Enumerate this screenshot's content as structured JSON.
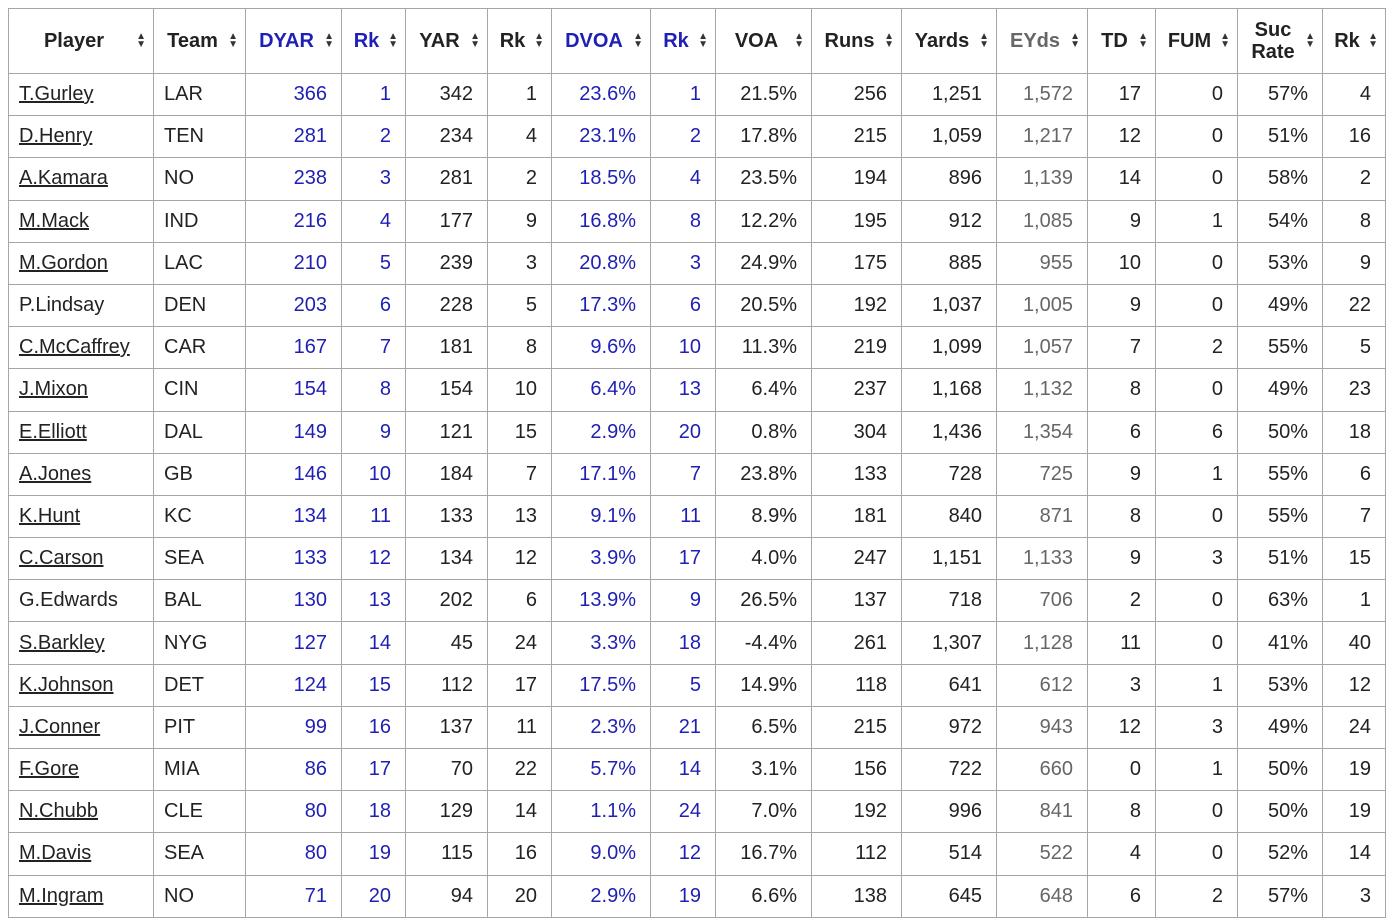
{
  "colors": {
    "highlight": "#1f1fb4",
    "muted": "#666666",
    "border": "#a6a6a6"
  },
  "sort_icon": "sort-updown-icon",
  "headers": [
    {
      "label": "Player",
      "style": "plain"
    },
    {
      "label": "Team",
      "style": "plain"
    },
    {
      "label": "DYAR",
      "style": "blue"
    },
    {
      "label": "Rk",
      "style": "blue"
    },
    {
      "label": "YAR",
      "style": "plain"
    },
    {
      "label": "Rk",
      "style": "plain"
    },
    {
      "label": "DVOA",
      "style": "blue"
    },
    {
      "label": "Rk",
      "style": "blue"
    },
    {
      "label": "VOA",
      "style": "plain"
    },
    {
      "label": "Runs",
      "style": "plain"
    },
    {
      "label": "Yards",
      "style": "plain"
    },
    {
      "label": "EYds",
      "style": "gray"
    },
    {
      "label": "TD",
      "style": "plain"
    },
    {
      "label": "FUM",
      "style": "plain"
    },
    {
      "label": "Suc Rate",
      "style": "plain"
    },
    {
      "label": "Rk",
      "style": "plain"
    }
  ],
  "rows": [
    {
      "player": "T.Gurley",
      "linked": true,
      "cells": [
        "LAR",
        "366",
        "1",
        "342",
        "1",
        "23.6%",
        "1",
        "21.5%",
        "256",
        "1,251",
        "1,572",
        "17",
        "0",
        "57%",
        "4"
      ]
    },
    {
      "player": "D.Henry",
      "linked": true,
      "cells": [
        "TEN",
        "281",
        "2",
        "234",
        "4",
        "23.1%",
        "2",
        "17.8%",
        "215",
        "1,059",
        "1,217",
        "12",
        "0",
        "51%",
        "16"
      ]
    },
    {
      "player": "A.Kamara",
      "linked": true,
      "cells": [
        "NO",
        "238",
        "3",
        "281",
        "2",
        "18.5%",
        "4",
        "23.5%",
        "194",
        "896",
        "1,139",
        "14",
        "0",
        "58%",
        "2"
      ]
    },
    {
      "player": "M.Mack",
      "linked": true,
      "cells": [
        "IND",
        "216",
        "4",
        "177",
        "9",
        "16.8%",
        "8",
        "12.2%",
        "195",
        "912",
        "1,085",
        "9",
        "1",
        "54%",
        "8"
      ]
    },
    {
      "player": "M.Gordon",
      "linked": true,
      "cells": [
        "LAC",
        "210",
        "5",
        "239",
        "3",
        "20.8%",
        "3",
        "24.9%",
        "175",
        "885",
        "955",
        "10",
        "0",
        "53%",
        "9"
      ]
    },
    {
      "player": "P.Lindsay",
      "linked": false,
      "cells": [
        "DEN",
        "203",
        "6",
        "228",
        "5",
        "17.3%",
        "6",
        "20.5%",
        "192",
        "1,037",
        "1,005",
        "9",
        "0",
        "49%",
        "22"
      ]
    },
    {
      "player": "C.McCaffrey",
      "linked": true,
      "cells": [
        "CAR",
        "167",
        "7",
        "181",
        "8",
        "9.6%",
        "10",
        "11.3%",
        "219",
        "1,099",
        "1,057",
        "7",
        "2",
        "55%",
        "5"
      ]
    },
    {
      "player": "J.Mixon",
      "linked": true,
      "cells": [
        "CIN",
        "154",
        "8",
        "154",
        "10",
        "6.4%",
        "13",
        "6.4%",
        "237",
        "1,168",
        "1,132",
        "8",
        "0",
        "49%",
        "23"
      ]
    },
    {
      "player": "E.Elliott",
      "linked": true,
      "cells": [
        "DAL",
        "149",
        "9",
        "121",
        "15",
        "2.9%",
        "20",
        "0.8%",
        "304",
        "1,436",
        "1,354",
        "6",
        "6",
        "50%",
        "18"
      ]
    },
    {
      "player": "A.Jones",
      "linked": true,
      "cells": [
        "GB",
        "146",
        "10",
        "184",
        "7",
        "17.1%",
        "7",
        "23.8%",
        "133",
        "728",
        "725",
        "9",
        "1",
        "55%",
        "6"
      ]
    },
    {
      "player": "K.Hunt",
      "linked": true,
      "cells": [
        "KC",
        "134",
        "11",
        "133",
        "13",
        "9.1%",
        "11",
        "8.9%",
        "181",
        "840",
        "871",
        "8",
        "0",
        "55%",
        "7"
      ]
    },
    {
      "player": "C.Carson",
      "linked": true,
      "cells": [
        "SEA",
        "133",
        "12",
        "134",
        "12",
        "3.9%",
        "17",
        "4.0%",
        "247",
        "1,151",
        "1,133",
        "9",
        "3",
        "51%",
        "15"
      ]
    },
    {
      "player": "G.Edwards",
      "linked": false,
      "cells": [
        "BAL",
        "130",
        "13",
        "202",
        "6",
        "13.9%",
        "9",
        "26.5%",
        "137",
        "718",
        "706",
        "2",
        "0",
        "63%",
        "1"
      ]
    },
    {
      "player": "S.Barkley",
      "linked": true,
      "cells": [
        "NYG",
        "127",
        "14",
        "45",
        "24",
        "3.3%",
        "18",
        "-4.4%",
        "261",
        "1,307",
        "1,128",
        "11",
        "0",
        "41%",
        "40"
      ]
    },
    {
      "player": "K.Johnson",
      "linked": true,
      "cells": [
        "DET",
        "124",
        "15",
        "112",
        "17",
        "17.5%",
        "5",
        "14.9%",
        "118",
        "641",
        "612",
        "3",
        "1",
        "53%",
        "12"
      ]
    },
    {
      "player": "J.Conner",
      "linked": true,
      "cells": [
        "PIT",
        "99",
        "16",
        "137",
        "11",
        "2.3%",
        "21",
        "6.5%",
        "215",
        "972",
        "943",
        "12",
        "3",
        "49%",
        "24"
      ]
    },
    {
      "player": "F.Gore",
      "linked": true,
      "cells": [
        "MIA",
        "86",
        "17",
        "70",
        "22",
        "5.7%",
        "14",
        "3.1%",
        "156",
        "722",
        "660",
        "0",
        "1",
        "50%",
        "19"
      ]
    },
    {
      "player": "N.Chubb",
      "linked": true,
      "cells": [
        "CLE",
        "80",
        "18",
        "129",
        "14",
        "1.1%",
        "24",
        "7.0%",
        "192",
        "996",
        "841",
        "8",
        "0",
        "50%",
        "19"
      ]
    },
    {
      "player": "M.Davis",
      "linked": true,
      "cells": [
        "SEA",
        "80",
        "19",
        "115",
        "16",
        "9.0%",
        "12",
        "16.7%",
        "112",
        "514",
        "522",
        "4",
        "0",
        "52%",
        "14"
      ]
    },
    {
      "player": "M.Ingram",
      "linked": true,
      "cells": [
        "NO",
        "71",
        "20",
        "94",
        "20",
        "2.9%",
        "19",
        "6.6%",
        "138",
        "645",
        "648",
        "6",
        "2",
        "57%",
        "3"
      ]
    }
  ]
}
